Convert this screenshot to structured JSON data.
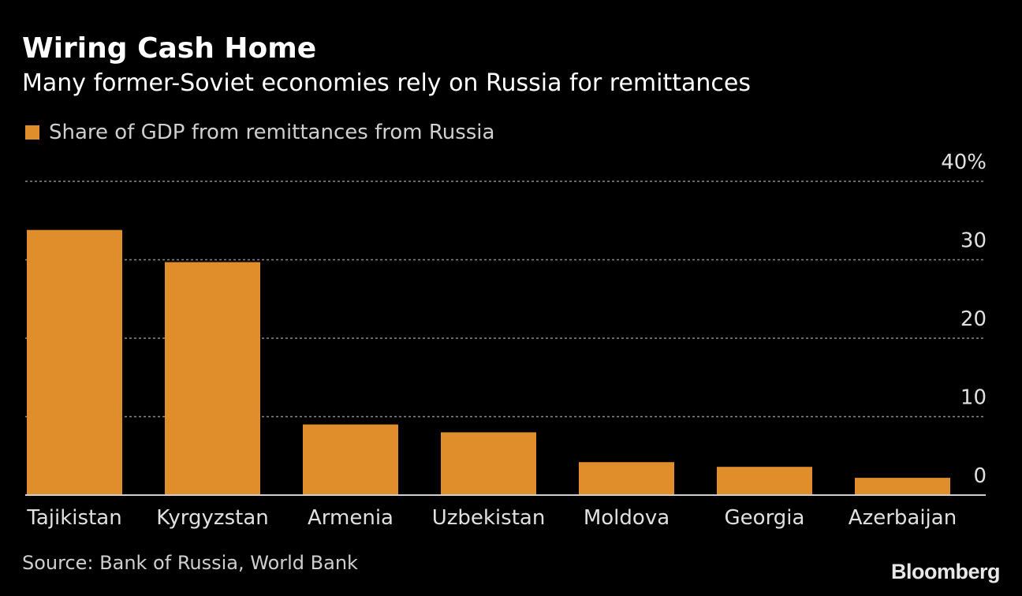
{
  "title": "Wiring Cash Home",
  "subtitle": "Many former-Soviet economies rely on Russia for remittances",
  "source": "Source: Bank of Russia, World Bank",
  "brand": "Bloomberg",
  "colors": {
    "bar": "#E08E2B",
    "background": "#000000",
    "grid": "#8a8a8a",
    "axis_text": "#e0e0e0"
  },
  "chart_data": {
    "type": "bar",
    "categories": [
      "Tajikistan",
      "Kyrgyzstan",
      "Armenia",
      "Uzbekistan",
      "Moldova",
      "Georgia",
      "Azerbaijan"
    ],
    "series": [
      {
        "name": "Share of GDP from remittances from Russia",
        "values": [
          33.8,
          29.7,
          9.0,
          8.0,
          4.2,
          3.6,
          2.2
        ]
      }
    ],
    "ylim": [
      0,
      40
    ],
    "yticks": [
      0,
      10,
      20,
      30,
      40
    ],
    "ytick_labels": [
      "0",
      "10",
      "20",
      "30",
      "40%"
    ],
    "y_axis_side": "right",
    "grid": true,
    "grid_style": "dotted",
    "legend_placement": "top-left",
    "title": "Wiring Cash Home",
    "xlabel": "",
    "ylabel": ""
  }
}
